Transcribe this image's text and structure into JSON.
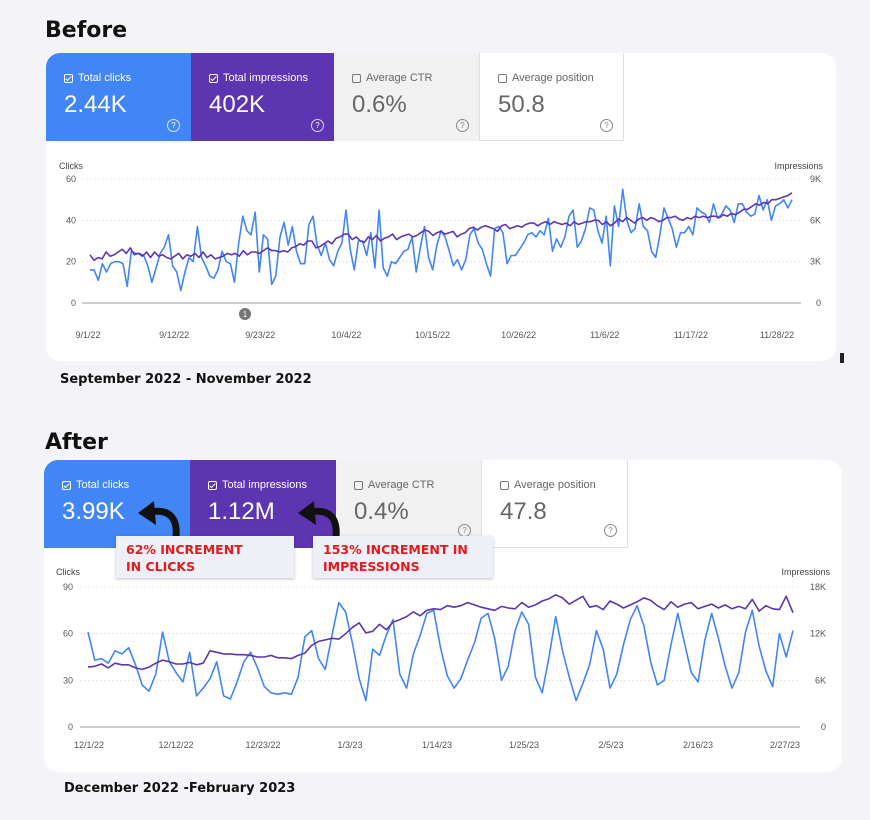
{
  "headings": {
    "before": "Before",
    "after": "After"
  },
  "before": {
    "tiles": [
      {
        "label": "Total clicks",
        "value": "2.44K"
      },
      {
        "label": "Total impressions",
        "value": "402K"
      },
      {
        "label": "Average CTR",
        "value": "0.6%"
      },
      {
        "label": "Average position",
        "value": "50.8"
      }
    ],
    "period": "September 2022 - November 2022",
    "annotation_marker": "1"
  },
  "after": {
    "tiles": [
      {
        "label": "Total clicks",
        "value": "3.99K"
      },
      {
        "label": "Total impressions",
        "value": "1.12M"
      },
      {
        "label": "Average CTR",
        "value": "0.4%"
      },
      {
        "label": "Average position",
        "value": "47.8"
      }
    ],
    "period": "December 2022 -February 2023",
    "callouts": {
      "clicks": [
        "62% INCREMENT",
        "IN CLICKS"
      ],
      "impressions": [
        "153% INCREMENT IN",
        "IMPRESSIONS"
      ]
    }
  },
  "colors": {
    "clicks": "#4285f4",
    "impressions": "#5e35b1",
    "callout_text": "#e5181e"
  },
  "chart_data": [
    {
      "type": "line",
      "left_label": "Clicks",
      "right_label": "Impressions",
      "y_left_ticks": [
        "0",
        "20",
        "40",
        "60"
      ],
      "y_right_ticks": [
        "0",
        "3K",
        "6K",
        "9K"
      ],
      "ylim_left": [
        0,
        60
      ],
      "ylim_right": [
        0,
        9000
      ],
      "x_tick_labels": [
        "9/1/22",
        "9/12/22",
        "9/23/22",
        "10/4/22",
        "10/15/22",
        "10/26/22",
        "11/6/22",
        "11/17/22",
        "11/28/22"
      ],
      "series": [
        {
          "name": "Clicks",
          "axis": "left",
          "values": [
            16,
            16,
            11,
            19,
            15,
            19,
            20,
            20,
            19,
            8,
            25,
            24,
            24,
            23,
            18,
            10,
            17,
            24,
            27,
            33,
            18,
            15,
            6,
            15,
            22,
            20,
            37,
            22,
            18,
            13,
            12,
            16,
            25,
            20,
            19,
            10,
            29,
            42,
            35,
            33,
            44,
            15,
            33,
            31,
            9,
            13,
            32,
            39,
            28,
            37,
            25,
            19,
            19,
            38,
            42,
            28,
            23,
            29,
            21,
            18,
            25,
            29,
            45,
            26,
            16,
            30,
            30,
            23,
            34,
            17,
            45,
            17,
            13,
            20,
            19,
            22,
            25,
            26,
            32,
            15,
            27,
            37,
            22,
            16,
            28,
            35,
            32,
            25,
            18,
            21,
            16,
            21,
            33,
            36,
            29,
            26,
            19,
            13,
            36,
            37,
            34,
            19,
            23,
            23,
            26,
            29,
            33,
            34,
            32,
            35,
            33,
            41,
            25,
            31,
            27,
            32,
            42,
            45,
            27,
            30,
            36,
            46,
            45,
            35,
            29,
            42,
            18,
            47,
            37,
            55,
            40,
            34,
            36,
            48,
            37,
            35,
            25,
            22,
            33,
            46,
            41,
            36,
            27,
            34,
            34,
            37,
            33,
            46,
            44,
            43,
            39,
            48,
            41,
            43,
            47,
            45,
            39,
            48,
            48,
            44,
            42,
            43,
            52,
            45,
            50,
            40,
            47,
            48,
            50,
            46,
            50
          ]
        },
        {
          "name": "Impressions",
          "axis": "right",
          "values": [
            3500,
            3100,
            3300,
            3200,
            3700,
            3400,
            3500,
            3700,
            3900,
            3600,
            4000,
            3500,
            3600,
            3400,
            3700,
            3300,
            3700,
            3400,
            3500,
            3300,
            3200,
            3400,
            3600,
            3200,
            3500,
            3400,
            3600,
            3300,
            3700,
            3300,
            3500,
            3200,
            3300,
            3400,
            3600,
            3500,
            3600,
            3400,
            3800,
            3500,
            3700,
            3700,
            3600,
            3800,
            4000,
            3800,
            3800,
            3700,
            3800,
            3700,
            4000,
            4100,
            4300,
            4200,
            4500,
            4500,
            4000,
            4100,
            4300,
            4500,
            4300,
            4700,
            4800,
            5000,
            5000,
            4600,
            4800,
            4500,
            4400,
            4800,
            4600,
            4900,
            4500,
            4700,
            4800,
            5000,
            4600,
            4800,
            4900,
            5000,
            4800,
            4900,
            5100,
            5300,
            5200,
            4900,
            5100,
            5200,
            5000,
            5100,
            5200,
            4800,
            5000,
            5100,
            5400,
            5500,
            5300,
            5500,
            5600,
            5500,
            5400,
            5200,
            5600,
            5700,
            5400,
            5500,
            5600,
            5500,
            5700,
            5800,
            5800,
            5600,
            5800,
            5900,
            5700,
            5900,
            5800,
            5700,
            5800,
            5600,
            5900,
            5700,
            5800,
            5900,
            5900,
            6000,
            6000,
            5700,
            5900,
            5600,
            5800,
            6100,
            5900,
            6200,
            6000,
            5800,
            6100,
            6200,
            6000,
            6200,
            6100,
            5900,
            6000,
            6200,
            6200,
            6300,
            6100,
            6000,
            6200,
            6100,
            6300,
            6200,
            6300,
            6200,
            6300,
            6300,
            6200,
            6400,
            6300,
            6500,
            6400,
            6600,
            6800,
            6800,
            7000,
            7200,
            7100,
            7300,
            7200,
            7500,
            7500,
            7600,
            7700,
            7800,
            8000
          ]
        }
      ]
    },
    {
      "type": "line",
      "left_label": "Clicks",
      "right_label": "Impressions",
      "y_left_ticks": [
        "0",
        "30",
        "60",
        "90"
      ],
      "y_right_ticks": [
        "0",
        "6K",
        "12K",
        "18K"
      ],
      "ylim_left": [
        0,
        90
      ],
      "ylim_right": [
        0,
        18000
      ],
      "x_tick_labels": [
        "12/1/22",
        "12/12/22",
        "12/23/22",
        "1/3/23",
        "1/14/23",
        "1/25/23",
        "2/5/23",
        "2/16/23",
        "2/27/23"
      ],
      "series": [
        {
          "name": "Clicks",
          "axis": "left",
          "values": [
            61,
            43,
            44,
            41,
            49,
            47,
            51,
            40,
            27,
            23,
            34,
            61,
            42,
            35,
            29,
            48,
            20,
            25,
            31,
            42,
            20,
            18,
            29,
            42,
            48,
            38,
            26,
            22,
            21,
            22,
            21,
            32,
            58,
            62,
            44,
            37,
            59,
            80,
            74,
            54,
            31,
            17,
            50,
            46,
            59,
            69,
            34,
            25,
            47,
            59,
            73,
            75,
            51,
            33,
            25,
            31,
            43,
            54,
            70,
            73,
            57,
            30,
            39,
            62,
            74,
            66,
            32,
            22,
            45,
            71,
            49,
            32,
            17,
            28,
            40,
            62,
            50,
            25,
            34,
            53,
            69,
            78,
            65,
            42,
            27,
            30,
            53,
            73,
            54,
            35,
            29,
            56,
            73,
            57,
            39,
            25,
            35,
            61,
            75,
            52,
            36,
            26,
            60,
            45,
            62
          ]
        },
        {
          "name": "Impressions",
          "axis": "right",
          "values": [
            7700,
            7800,
            8100,
            7600,
            8200,
            8000,
            8000,
            7600,
            7400,
            7700,
            8200,
            8600,
            8400,
            8100,
            8100,
            8300,
            8000,
            8200,
            9800,
            9600,
            9400,
            9400,
            9300,
            9300,
            9200,
            9000,
            9000,
            9200,
            8900,
            8900,
            8800,
            9200,
            9500,
            10500,
            11000,
            11200,
            11400,
            11300,
            12000,
            12800,
            13400,
            12100,
            12300,
            13200,
            12500,
            13500,
            13800,
            14200,
            14800,
            14300,
            15000,
            15200,
            15100,
            15600,
            15400,
            15600,
            16000,
            15700,
            15400,
            15200,
            15000,
            15500,
            15300,
            15200,
            16000,
            15400,
            15700,
            16200,
            16500,
            17000,
            16600,
            15800,
            16300,
            16800,
            15400,
            15600,
            15100,
            16200,
            15800,
            15300,
            15700,
            16100,
            16600,
            16300,
            15600,
            15100,
            16100,
            15400,
            15800,
            16000,
            15200,
            15500,
            15800,
            15300,
            15700,
            15200,
            15500,
            15200,
            16400,
            14900,
            15600,
            15200,
            15100,
            16800,
            14700
          ]
        }
      ]
    }
  ]
}
